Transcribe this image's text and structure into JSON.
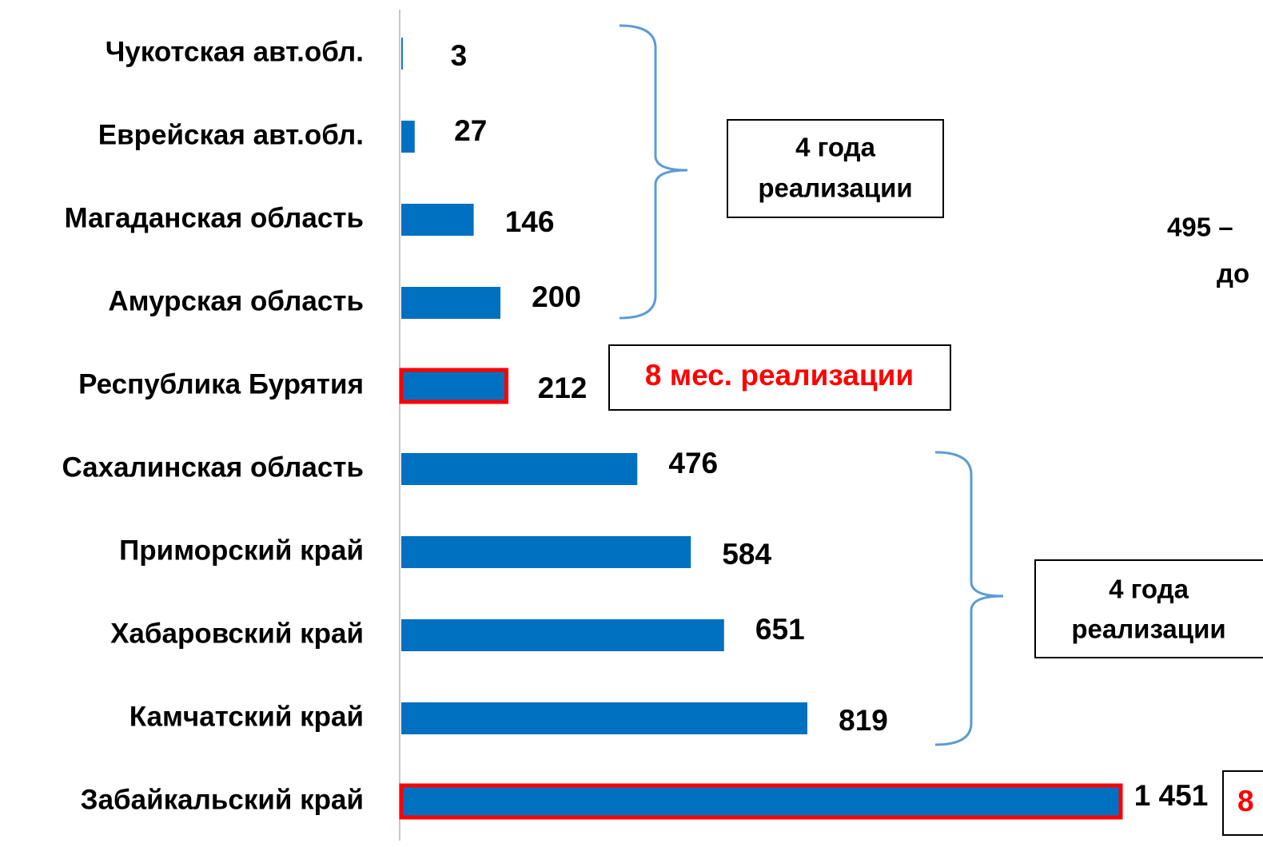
{
  "chart_data": {
    "type": "barh",
    "categories": [
      "Чукотская авт.обл.",
      "Еврейская авт.обл.",
      "Магаданская область",
      "Амурская область",
      "Республика Бурятия",
      "Сахалинская область",
      "Приморский край",
      "Хабаровский край",
      "Камчатский край",
      "Забайкальский край"
    ],
    "values": [
      3,
      27,
      146,
      200,
      212,
      476,
      584,
      651,
      819,
      1451
    ],
    "value_labels": [
      "3",
      "27",
      "146",
      "200",
      "212",
      "476",
      "584",
      "651",
      "819",
      "1 451"
    ],
    "color": "#0070c0",
    "highlight": [
      4,
      9
    ],
    "highlight_color": "#ff0000",
    "xlim": [
      0,
      1451
    ],
    "annotations": [
      {
        "lines": [
          "4 года",
          "реализации"
        ]
      },
      {
        "lines": [
          "8 мес. реализации"
        ],
        "color": "#ff0000"
      },
      {
        "lines": [
          "4 года",
          "реализации"
        ]
      },
      {
        "lines": [
          "8"
        ],
        "color": "#ff0000"
      },
      {
        "lines": [
          "495 –",
          "до"
        ]
      }
    ]
  }
}
